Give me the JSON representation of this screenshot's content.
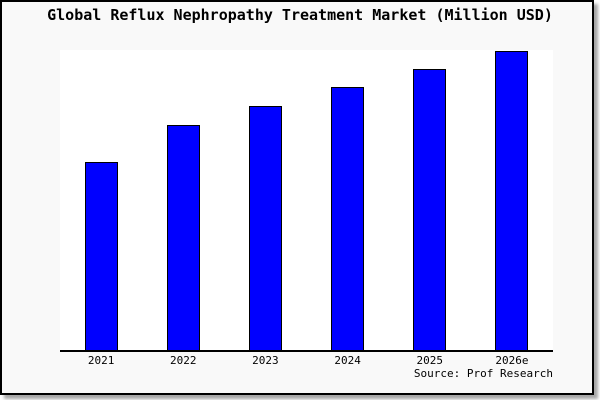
{
  "title": "Global Reflux Nephropathy Treatment Market (Million USD)",
  "source_note": "Source: Prof Research",
  "colors": {
    "bar_fill": "#0000ff",
    "bar_border": "#000000",
    "figure_bg": "#f9f9f9",
    "plot_bg": "#ffffff",
    "axis_color": "#000000",
    "frame_border": "#000000",
    "text": "#000000"
  },
  "chart_data": {
    "type": "bar",
    "title": "Global Reflux Nephropathy Treatment Market (Million USD)",
    "categories": [
      "2021",
      "2022",
      "2023",
      "2024",
      "2025",
      "2026e"
    ],
    "values": [
      62.7,
      75.0,
      81.3,
      87.7,
      93.7,
      99.8
    ],
    "value_units": "relative (y-axis unlabeled, values estimated from bar heights; units are Million USD per title)",
    "xlabel": "",
    "ylabel": "",
    "ylim": [
      0,
      100
    ],
    "grid": false,
    "legend": false,
    "y_axis_visible": false,
    "annotations": [
      "Source: Prof Research"
    ]
  }
}
